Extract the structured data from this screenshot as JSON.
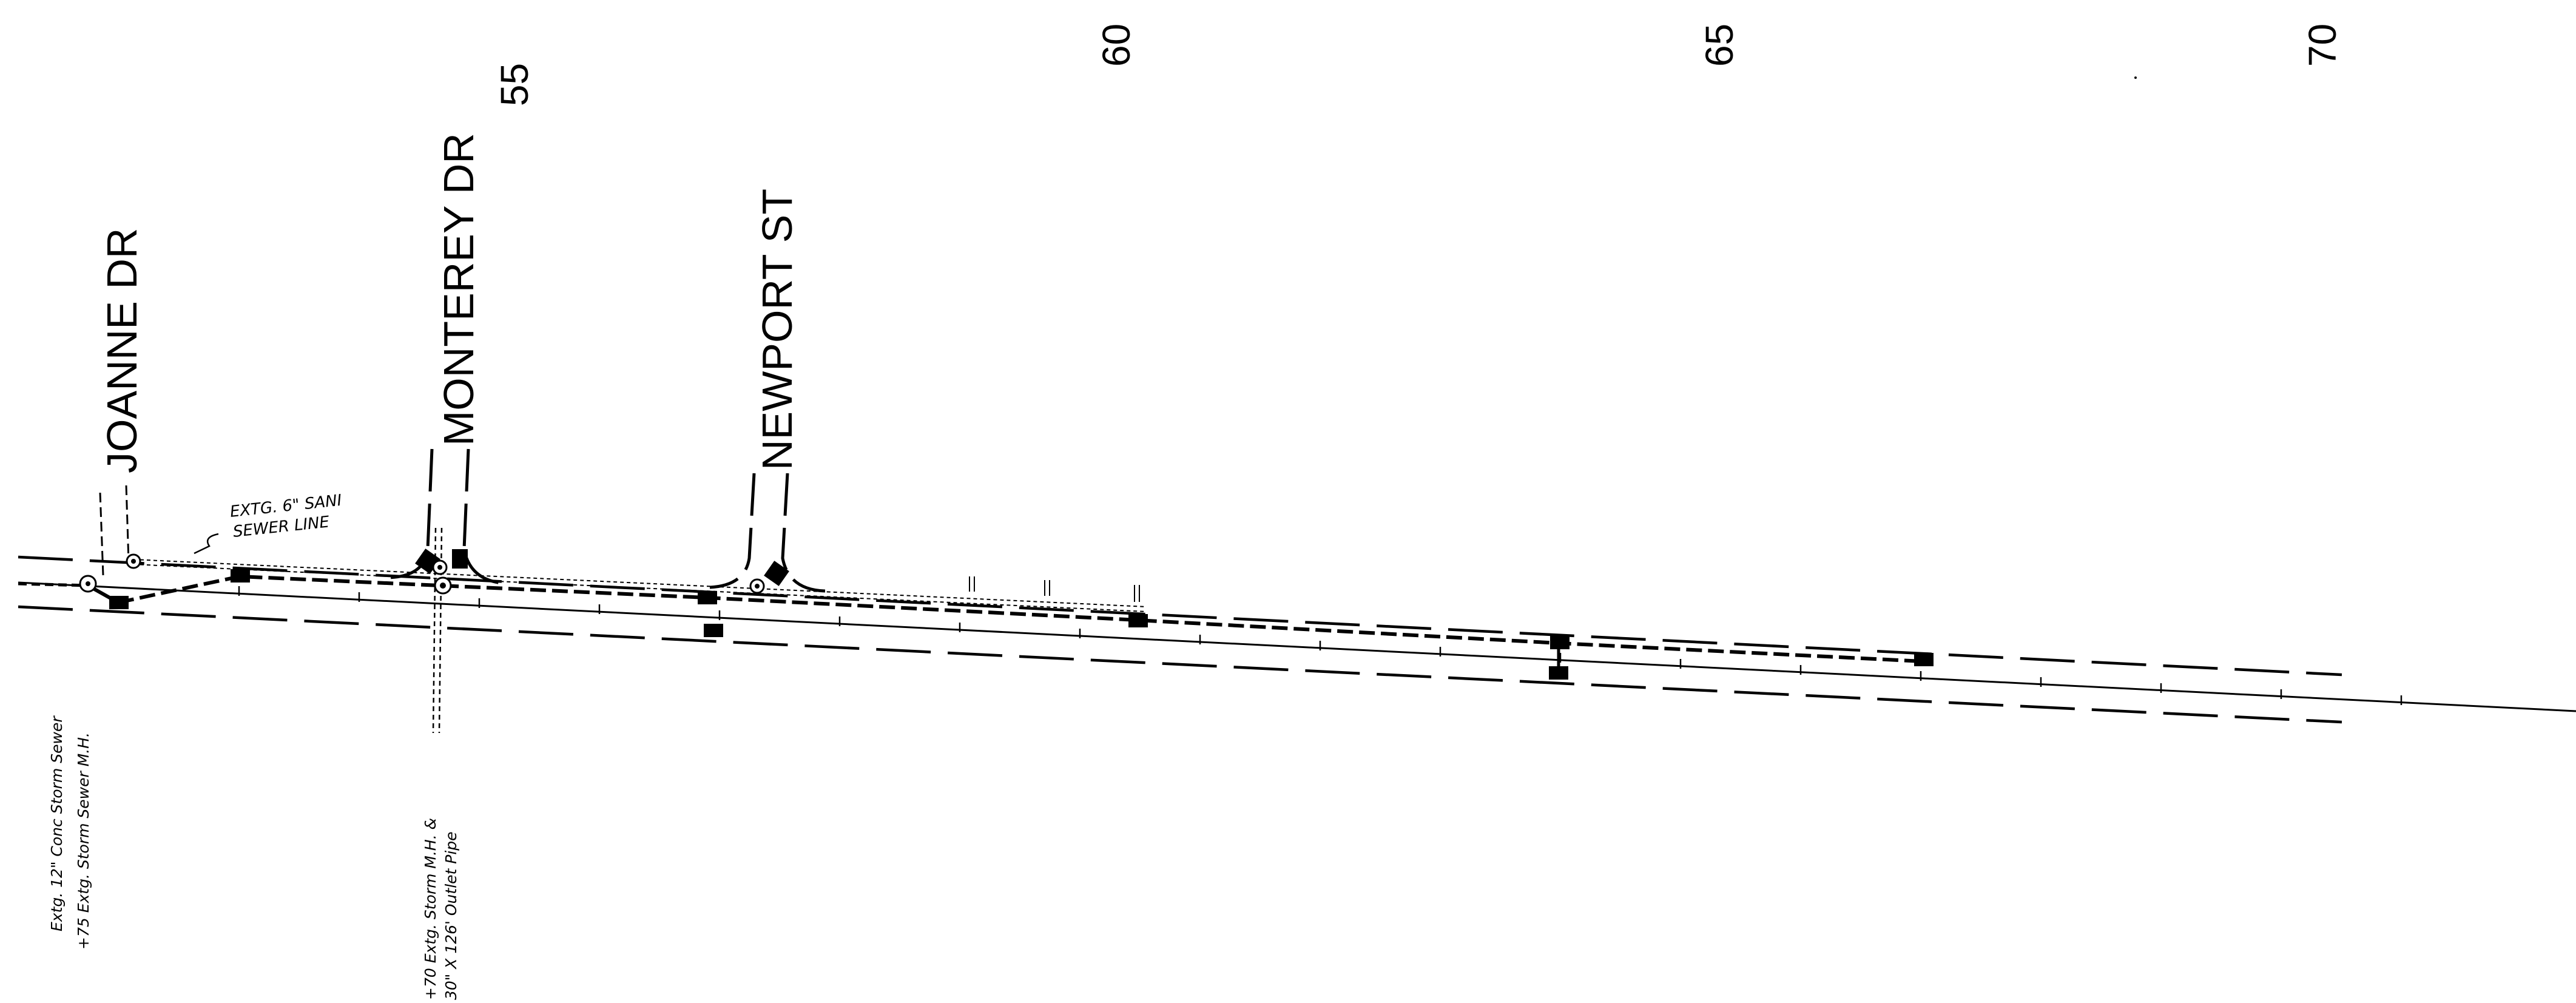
{
  "stations": [
    "55",
    "60",
    "65",
    "70"
  ],
  "streets": {
    "joanne": "JOANNE DR",
    "monterey": "MONTEREY DR",
    "newport": "NEWPORT ST"
  },
  "notes": {
    "sanitary_line_1": "EXTG. 6\" SANI",
    "sanitary_line_2": "SEWER LINE",
    "left_note_1": "Extg. 12\" Conc Storm Sewer",
    "left_note_2": "+75 Extg. Storm Sewer M.H.",
    "mid_note_1": "+70 Extg. Storm M.H. &",
    "mid_note_2": "30\" X 126' Outlet Pipe"
  },
  "colors": {
    "ink": "#000000",
    "paper": "#ffffff"
  }
}
